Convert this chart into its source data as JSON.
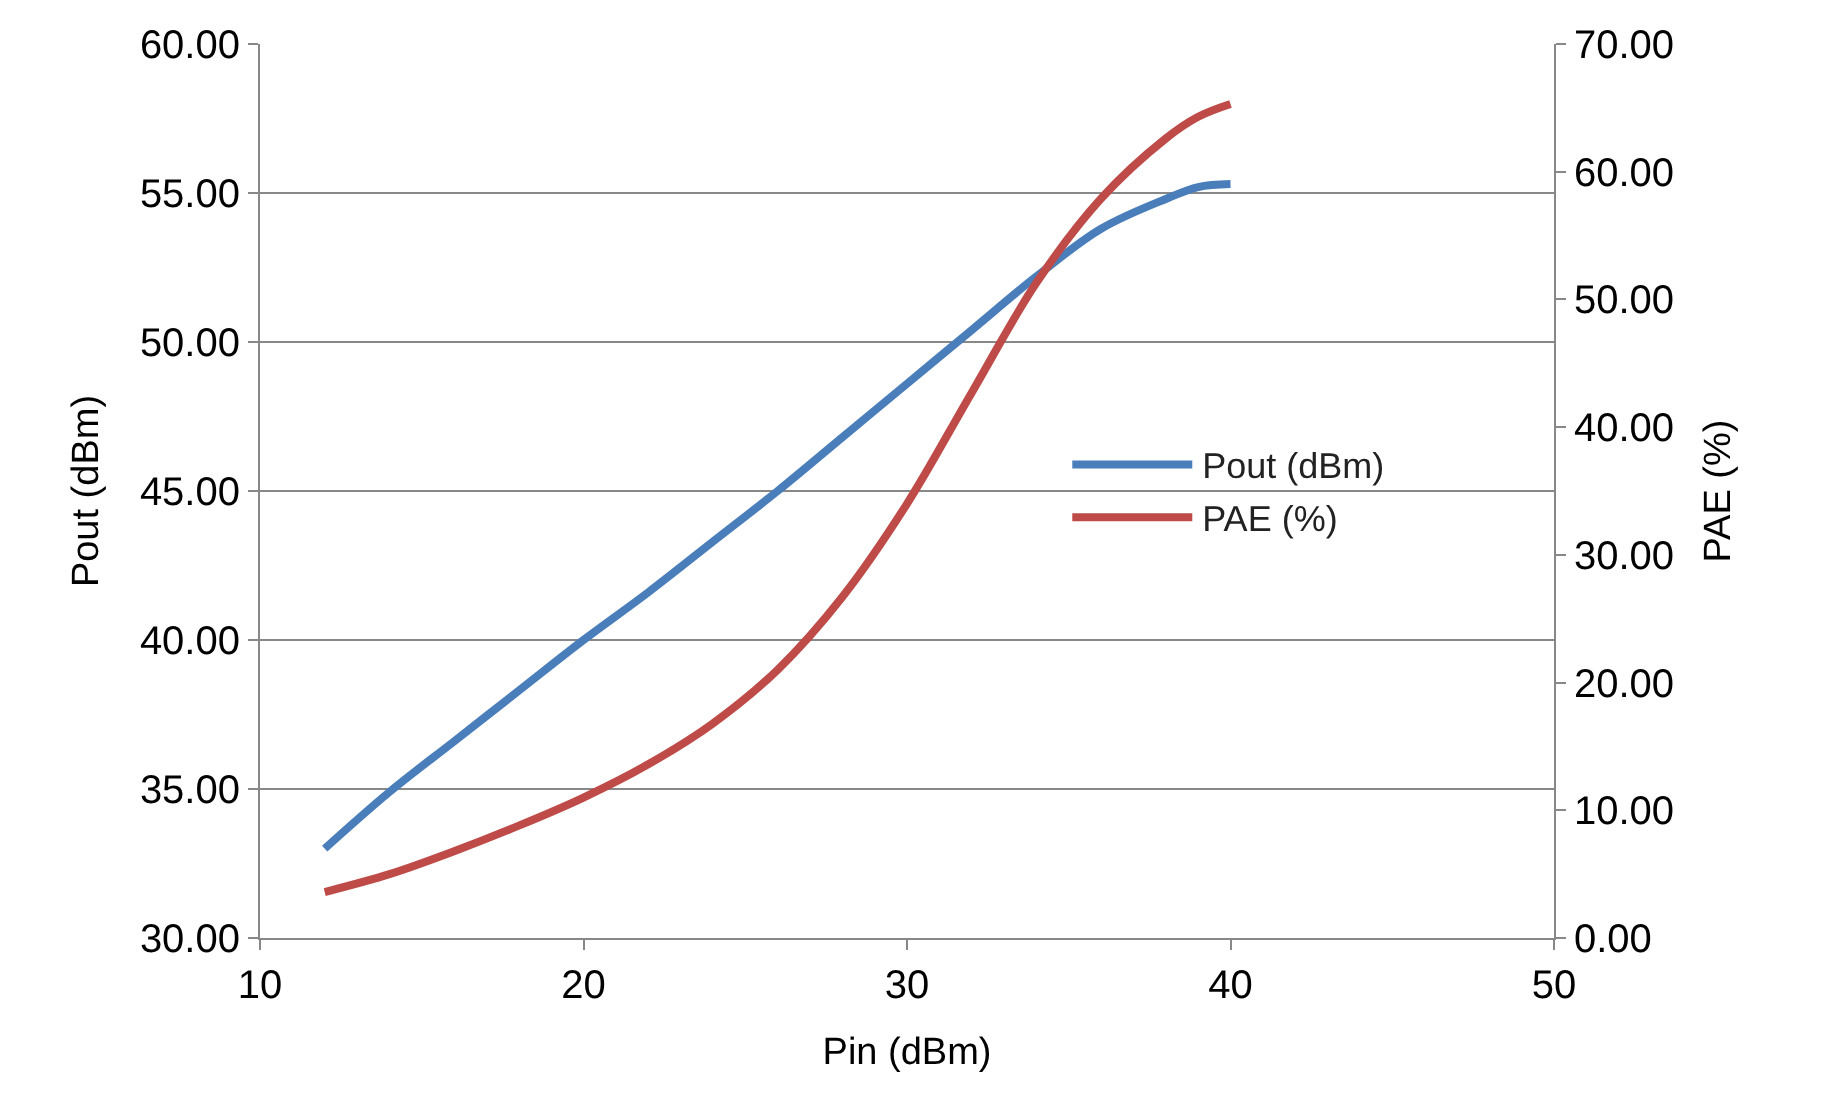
{
  "chart_data": {
    "type": "line",
    "xlabel": "Pin (dBm)",
    "ylabel": "Pout (dBm)",
    "y2label": "PAE (%)",
    "x": [
      12,
      14,
      16,
      18,
      20,
      22,
      24,
      26,
      28,
      30,
      32,
      34,
      36,
      38,
      39,
      40
    ],
    "series": [
      {
        "name": "Pout (dBm)",
        "color": "#4a7ebb",
        "values": [
          33.0,
          34.9,
          36.6,
          38.3,
          40.0,
          41.6,
          43.3,
          45.0,
          46.8,
          48.6,
          50.4,
          52.2,
          53.8,
          54.8,
          55.2,
          55.3
        ]
      },
      {
        "name": "PAE (%)",
        "color": "#be4b48",
        "axis": "y2",
        "values": [
          3.6,
          5.0,
          6.8,
          8.8,
          11.0,
          13.6,
          16.8,
          21.0,
          26.7,
          34.0,
          42.7,
          51.3,
          57.9,
          62.6,
          64.3,
          65.3
        ]
      }
    ],
    "xlim": [
      10,
      50
    ],
    "xticks": [
      10,
      20,
      30,
      40,
      50
    ],
    "ylim": [
      30,
      60
    ],
    "yticks": [
      {
        "value": 30,
        "label": "30.00"
      },
      {
        "value": 35,
        "label": "35.00"
      },
      {
        "value": 40,
        "label": "40.00"
      },
      {
        "value": 45,
        "label": "45.00"
      },
      {
        "value": 50,
        "label": "50.00"
      },
      {
        "value": 55,
        "label": "55.00"
      },
      {
        "value": 60,
        "label": "60.00"
      }
    ],
    "y2lim": [
      0,
      70
    ],
    "y2ticks": [
      {
        "value": 0,
        "label": "0.00"
      },
      {
        "value": 10,
        "label": "10.00"
      },
      {
        "value": 20,
        "label": "20.00"
      },
      {
        "value": 30,
        "label": "30.00"
      },
      {
        "value": 40,
        "label": "40.00"
      },
      {
        "value": 50,
        "label": "50.00"
      },
      {
        "value": 60,
        "label": "60.00"
      },
      {
        "value": 70,
        "label": "70.00"
      }
    ],
    "grid": "y",
    "legend": "right",
    "marker": "none",
    "line_style": "solid"
  }
}
